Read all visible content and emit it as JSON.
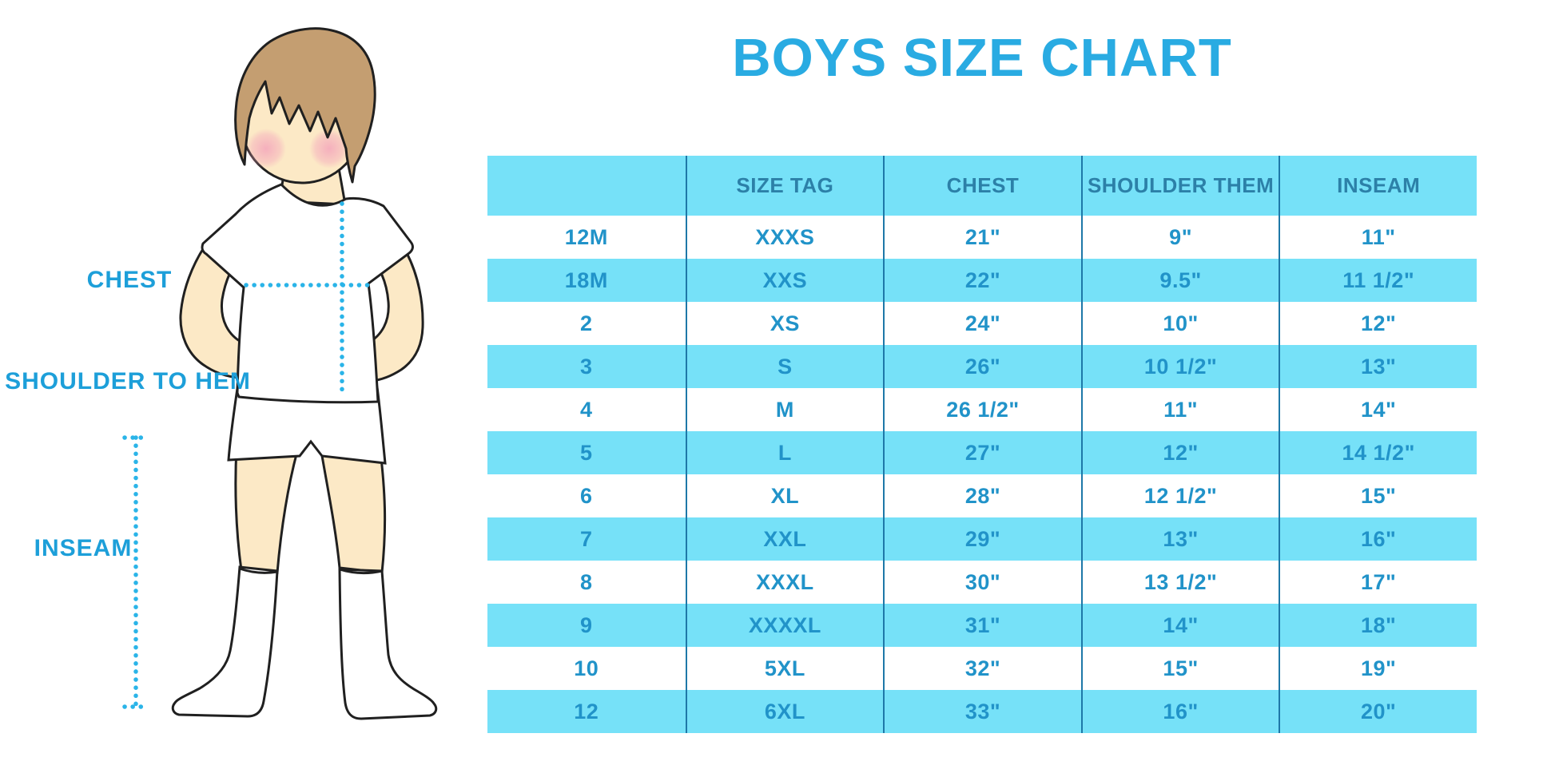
{
  "title": "BOYS SIZE CHART",
  "figure_labels": {
    "chest": "CHEST",
    "shoulder_to_hem": "SHOULDER TO HEM",
    "inseam": "INSEAM"
  },
  "chart_data": {
    "type": "table",
    "title": "BOYS SIZE CHART",
    "columns": [
      "",
      "SIZE TAG",
      "CHEST",
      "SHOULDER THEM",
      "INSEAM"
    ],
    "rows": [
      [
        "12M",
        "XXXS",
        "21\"",
        "9\"",
        "11\""
      ],
      [
        "18M",
        "XXS",
        "22\"",
        "9.5\"",
        "11 1/2\""
      ],
      [
        "2",
        "XS",
        "24\"",
        "10\"",
        "12\""
      ],
      [
        "3",
        "S",
        "26\"",
        "10 1/2\"",
        "13\""
      ],
      [
        "4",
        "M",
        "26 1/2\"",
        "11\"",
        "14\""
      ],
      [
        "5",
        "L",
        "27\"",
        "12\"",
        "14 1/2\""
      ],
      [
        "6",
        "XL",
        "28\"",
        "12 1/2\"",
        "15\""
      ],
      [
        "7",
        "XXL",
        "29\"",
        "13\"",
        "16\""
      ],
      [
        "8",
        "XXXL",
        "30\"",
        "13 1/2\"",
        "17\""
      ],
      [
        "9",
        "XXXXL",
        "31\"",
        "14\"",
        "18\""
      ],
      [
        "10",
        "5XL",
        "32\"",
        "15\"",
        "19\""
      ],
      [
        "12",
        "6XL",
        "33\"",
        "16\"",
        "20\""
      ]
    ],
    "row_stripe_pattern": "alternating white / cyan, header cyan",
    "legend_position": "none",
    "grid": "vertical column dividers only"
  },
  "colors": {
    "stripe_cyan": "#76E1F8",
    "title_blue": "#29ABE2",
    "cell_text_blue": "#2193C9",
    "header_text_blue": "#2C80A8",
    "column_divider_blue": "#1E78A8",
    "dotted_measure_blue": "#2AB4E8",
    "label_blue": "#1D9FD9",
    "skin": "#FCE9C6",
    "hair_brown": "#C49E71",
    "cheek_pink": "#F4A9BC",
    "outline": "#202020",
    "garment_white": "#FFFFFF"
  }
}
